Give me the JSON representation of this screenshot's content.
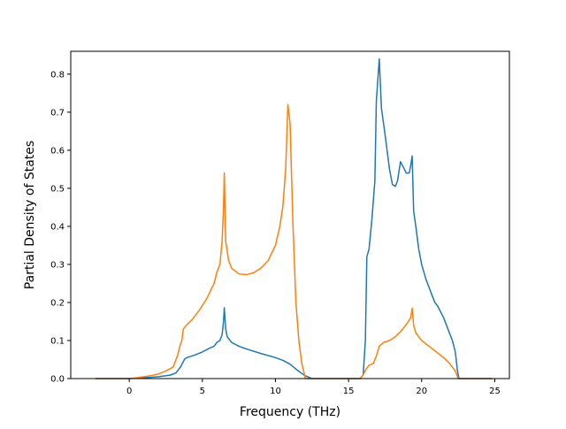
{
  "chart_data": {
    "type": "line",
    "xlabel": "Frequency (THz)",
    "ylabel": "Partial Density of States",
    "xlim": [
      -4.0,
      26.0
    ],
    "ylim": [
      0.0,
      0.86
    ],
    "xticks": [
      0,
      5,
      10,
      15,
      20,
      25
    ],
    "yticks": [
      0.0,
      0.1,
      0.2,
      0.3,
      0.4,
      0.5,
      0.6,
      0.7,
      0.8
    ],
    "grid": false,
    "colors": {
      "series1": "#1f77b4",
      "series2": "#ff7f0e",
      "axes": "#000000",
      "background": "#ffffff"
    },
    "series": [
      {
        "color": "#1f77b4",
        "points": [
          [
            -2.3,
            0.0
          ],
          [
            0.0,
            0.0
          ],
          [
            1.0,
            0.002
          ],
          [
            2.0,
            0.005
          ],
          [
            2.8,
            0.009
          ],
          [
            3.2,
            0.015
          ],
          [
            3.5,
            0.03
          ],
          [
            3.8,
            0.052
          ],
          [
            4.0,
            0.056
          ],
          [
            4.5,
            0.062
          ],
          [
            5.0,
            0.07
          ],
          [
            5.5,
            0.08
          ],
          [
            5.8,
            0.085
          ],
          [
            6.0,
            0.095
          ],
          [
            6.2,
            0.1
          ],
          [
            6.35,
            0.115
          ],
          [
            6.45,
            0.15
          ],
          [
            6.5,
            0.186
          ],
          [
            6.6,
            0.13
          ],
          [
            6.7,
            0.11
          ],
          [
            7.0,
            0.095
          ],
          [
            7.5,
            0.085
          ],
          [
            8.0,
            0.078
          ],
          [
            9.0,
            0.066
          ],
          [
            10.0,
            0.055
          ],
          [
            10.5,
            0.048
          ],
          [
            11.0,
            0.038
          ],
          [
            11.5,
            0.022
          ],
          [
            12.0,
            0.008
          ],
          [
            12.5,
            0.0
          ],
          [
            15.8,
            0.0
          ],
          [
            16.0,
            0.01
          ],
          [
            16.15,
            0.1
          ],
          [
            16.25,
            0.32
          ],
          [
            16.4,
            0.34
          ],
          [
            16.6,
            0.42
          ],
          [
            16.8,
            0.52
          ],
          [
            16.9,
            0.73
          ],
          [
            17.1,
            0.84
          ],
          [
            17.25,
            0.71
          ],
          [
            17.5,
            0.64
          ],
          [
            17.8,
            0.55
          ],
          [
            18.0,
            0.51
          ],
          [
            18.2,
            0.505
          ],
          [
            18.35,
            0.52
          ],
          [
            18.55,
            0.57
          ],
          [
            18.75,
            0.555
          ],
          [
            18.95,
            0.54
          ],
          [
            19.15,
            0.54
          ],
          [
            19.25,
            0.56
          ],
          [
            19.35,
            0.585
          ],
          [
            19.45,
            0.44
          ],
          [
            19.6,
            0.4
          ],
          [
            19.8,
            0.34
          ],
          [
            20.0,
            0.3
          ],
          [
            20.3,
            0.26
          ],
          [
            20.6,
            0.23
          ],
          [
            20.9,
            0.2
          ],
          [
            21.1,
            0.19
          ],
          [
            21.5,
            0.16
          ],
          [
            21.8,
            0.13
          ],
          [
            22.1,
            0.1
          ],
          [
            22.3,
            0.07
          ],
          [
            22.45,
            0.02
          ],
          [
            22.55,
            0.0
          ],
          [
            24.8,
            0.0
          ]
        ]
      },
      {
        "color": "#ff7f0e",
        "points": [
          [
            -2.3,
            0.0
          ],
          [
            0.0,
            0.0
          ],
          [
            0.5,
            0.002
          ],
          [
            1.0,
            0.005
          ],
          [
            1.5,
            0.008
          ],
          [
            2.0,
            0.012
          ],
          [
            2.5,
            0.02
          ],
          [
            3.0,
            0.03
          ],
          [
            3.3,
            0.06
          ],
          [
            3.5,
            0.09
          ],
          [
            3.6,
            0.1
          ],
          [
            3.7,
            0.13
          ],
          [
            3.9,
            0.14
          ],
          [
            4.3,
            0.155
          ],
          [
            4.8,
            0.18
          ],
          [
            5.3,
            0.21
          ],
          [
            5.8,
            0.25
          ],
          [
            6.0,
            0.28
          ],
          [
            6.2,
            0.3
          ],
          [
            6.35,
            0.36
          ],
          [
            6.45,
            0.45
          ],
          [
            6.5,
            0.54
          ],
          [
            6.6,
            0.36
          ],
          [
            6.8,
            0.31
          ],
          [
            7.0,
            0.29
          ],
          [
            7.5,
            0.275
          ],
          [
            8.0,
            0.273
          ],
          [
            8.5,
            0.278
          ],
          [
            9.0,
            0.29
          ],
          [
            9.5,
            0.31
          ],
          [
            10.0,
            0.35
          ],
          [
            10.3,
            0.4
          ],
          [
            10.5,
            0.45
          ],
          [
            10.7,
            0.55
          ],
          [
            10.85,
            0.72
          ],
          [
            11.0,
            0.67
          ],
          [
            11.2,
            0.4
          ],
          [
            11.4,
            0.2
          ],
          [
            11.6,
            0.1
          ],
          [
            11.8,
            0.04
          ],
          [
            12.05,
            0.0
          ],
          [
            15.8,
            0.0
          ],
          [
            16.0,
            0.01
          ],
          [
            16.2,
            0.025
          ],
          [
            16.4,
            0.035
          ],
          [
            16.7,
            0.04
          ],
          [
            16.9,
            0.06
          ],
          [
            17.1,
            0.085
          ],
          [
            17.4,
            0.095
          ],
          [
            17.8,
            0.1
          ],
          [
            18.2,
            0.11
          ],
          [
            18.6,
            0.125
          ],
          [
            19.0,
            0.145
          ],
          [
            19.25,
            0.16
          ],
          [
            19.35,
            0.185
          ],
          [
            19.45,
            0.14
          ],
          [
            19.6,
            0.12
          ],
          [
            20.0,
            0.1
          ],
          [
            20.5,
            0.085
          ],
          [
            21.0,
            0.07
          ],
          [
            21.5,
            0.055
          ],
          [
            21.9,
            0.04
          ],
          [
            22.3,
            0.02
          ],
          [
            22.5,
            0.0
          ],
          [
            24.8,
            0.0
          ]
        ]
      }
    ]
  }
}
